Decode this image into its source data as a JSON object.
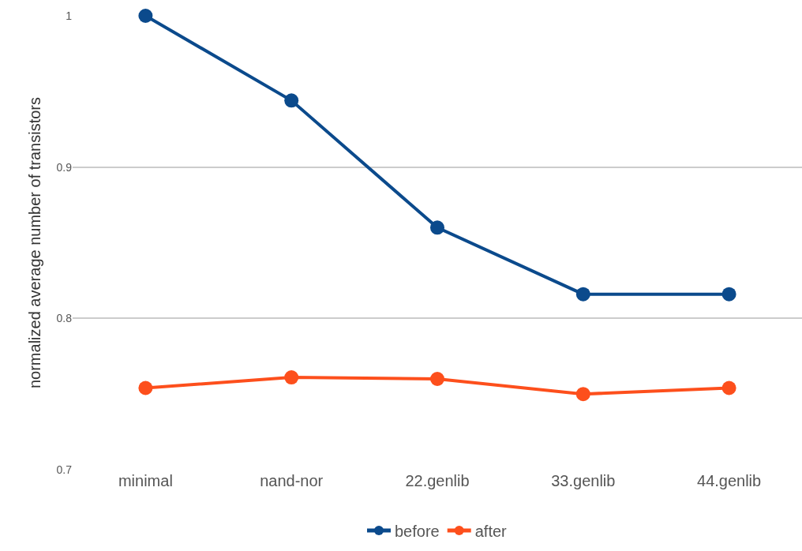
{
  "chart_data": {
    "type": "line",
    "ylabel": "normalized average number of transistors",
    "categories": [
      "minimal",
      "nand-nor",
      "22.genlib",
      "33.genlib",
      "44.genlib"
    ],
    "series": [
      {
        "name": "before",
        "color": "#0b4a8c",
        "values": [
          1.0,
          0.944,
          0.86,
          0.816,
          0.816
        ]
      },
      {
        "name": "after",
        "color": "#fd4f1c",
        "values": [
          0.754,
          0.761,
          0.76,
          0.75,
          0.754
        ]
      }
    ],
    "ylim": [
      0.7,
      1.0
    ],
    "yticks": [
      0.7,
      0.8,
      0.9,
      1
    ],
    "grid": "y",
    "legend": "bottom",
    "marker": "circle",
    "line_style": "solid"
  }
}
